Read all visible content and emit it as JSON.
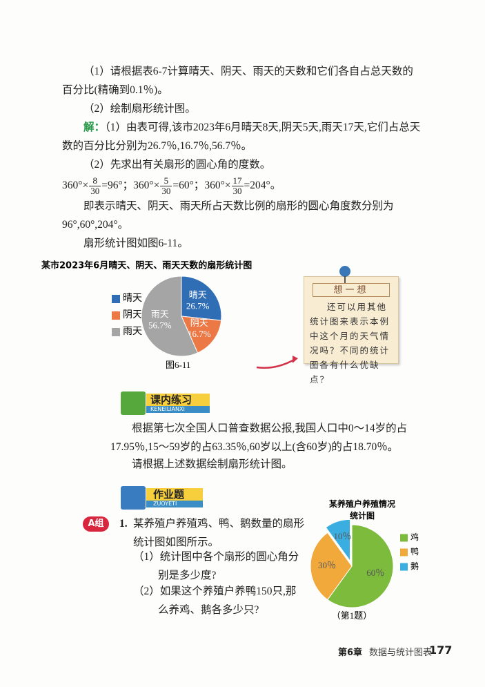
{
  "problem": {
    "q1": "（1）请根据表6-7计算晴天、阴天、雨天的天数和它们各自占总天数的百分比(精确到0.1％)。",
    "q2": "（2）绘制扇形统计图。"
  },
  "solution": {
    "label": "解：",
    "s1": "（1）由表可得,该市2023年6月晴天8天,阴天5天,雨天17天,它们占总天数的百分比分别为26.7％,16.7％,56.7％。",
    "s2": "（2）先求出有关扇形的圆心角的度数。",
    "formula": [
      {
        "prefix": "360°×",
        "num": "8",
        "den": "30",
        "result": "=96°；"
      },
      {
        "prefix": "360°×",
        "num": "5",
        "den": "30",
        "result": "=60°；"
      },
      {
        "prefix": "360°×",
        "num": "17",
        "den": "30",
        "result": "=204°。"
      }
    ],
    "s3": "即表示晴天、阴天、雨天所占天数比例的扇形的圆心角度数分别为96°,60°,204°。",
    "s4": "扇形统计图如图6-11。"
  },
  "figure1": {
    "type": "pie",
    "title": "某市2023年6月晴天、阴天、雨天天数的扇形统计图",
    "categories": [
      "晴天",
      "阴天",
      "雨天"
    ],
    "values": [
      26.7,
      16.7,
      56.7
    ],
    "value_labels": [
      "26.7%",
      "16.7%",
      "56.7%"
    ],
    "colors": [
      "#2f6db5",
      "#ec7846",
      "#a5a5a5"
    ],
    "caption": "图6-11"
  },
  "think": {
    "title": "想一想",
    "text": "还可以用其他统计图来表示本例中这个月的天气情况吗？不同的统计图各有什么优缺点？"
  },
  "exercise": {
    "title": "课内练习",
    "subtitle": "KENEILIANXI",
    "text": "根据第七次全国人口普查数据公报,我国人口中0～14岁的占17.95％,15～59岁的占63.35％,60岁以上(含60岁)的占18.70％。",
    "task": "请根据上述数据绘制扇形统计图。"
  },
  "homework": {
    "title": "作业题",
    "subtitle": "ZUOYETI",
    "group": "A组",
    "number": "1.",
    "text": "某养殖户养殖鸡、鸭、鹅数量的扇形统计图如图所示。",
    "sub1": "（1）统计图中各个扇形的圆心角分别是多少度?",
    "sub2": "（2）如果这个养殖户养鸭150只,那么养鸡、鹅各多少只?"
  },
  "figure2": {
    "type": "pie",
    "title": "某养殖户养殖情况统计图",
    "categories": [
      "鸡",
      "鸭",
      "鹅"
    ],
    "values": [
      60,
      30,
      10
    ],
    "value_labels": [
      "60％",
      "30％",
      "10％"
    ],
    "colors": [
      "#7dbb3c",
      "#f2a93b",
      "#3aaee0"
    ],
    "caption": "（第1题）"
  },
  "footer": {
    "chapter": "第6章",
    "chapter_title": "数据与统计图表",
    "page": "177"
  }
}
